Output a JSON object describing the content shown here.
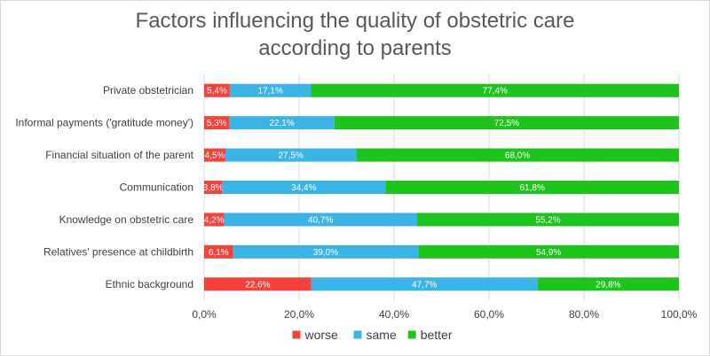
{
  "chart_data": {
    "type": "bar",
    "orientation": "horizontal",
    "stacked": "percent",
    "title_lines": [
      "Factors influencing the quality of obstetric care",
      "according to parents"
    ],
    "categories": [
      "Private obstetrician",
      "Informal payments ('gratitude money')",
      "Financial situation of the parent",
      "Communication",
      "Knowledge on obstetric care",
      "Relatives' presence at childbirth",
      "Ethnic background"
    ],
    "series": [
      {
        "name": "worse",
        "color": "#f4433c",
        "values": [
          5.4,
          5.3,
          4.5,
          3.8,
          4.2,
          6.1,
          22.6
        ],
        "labels": [
          "5,4%",
          "5,3%",
          "4,5%",
          "3,8%",
          "4,2%",
          "6,1%",
          "22,6%"
        ]
      },
      {
        "name": "same",
        "color": "#3cb3e5",
        "values": [
          17.1,
          22.1,
          27.5,
          34.4,
          40.7,
          39.0,
          47.7
        ],
        "labels": [
          "17,1%",
          "22,1%",
          "27,5%",
          "34,4%",
          "40,7%",
          "39,0%",
          "47,7%"
        ]
      },
      {
        "name": "better",
        "color": "#1ec31e",
        "values": [
          77.4,
          72.5,
          68.0,
          61.8,
          55.2,
          54.9,
          29.8
        ],
        "labels": [
          "77,4%",
          "72,5%",
          "68,0%",
          "61,8%",
          "55,2%",
          "54,9%",
          "29,8%"
        ]
      }
    ],
    "xlim": [
      0,
      100
    ],
    "x_ticks": [
      "0,0%",
      "20,0%",
      "40,0%",
      "60,0%",
      "80,0%",
      "100,0%"
    ],
    "grid": true,
    "legend": "bottom"
  }
}
